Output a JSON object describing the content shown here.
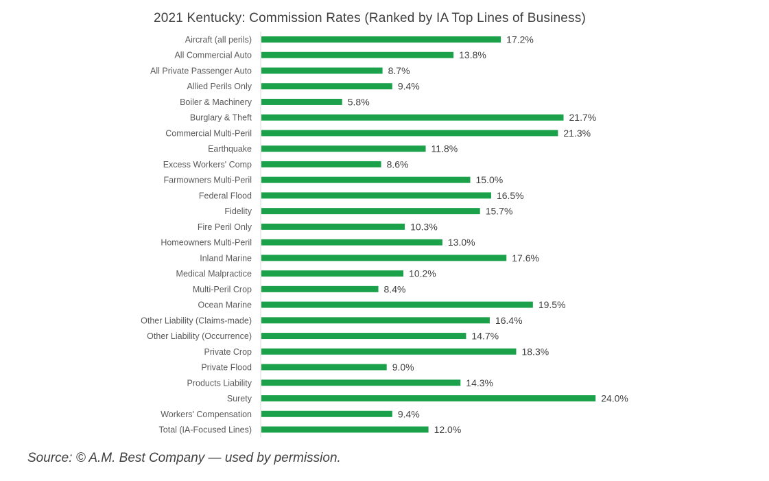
{
  "chart_data": {
    "type": "bar",
    "orientation": "horizontal",
    "title": "2021 Kentucky: Commission Rates (Ranked by IA Top Lines of Business)",
    "xlabel": "",
    "ylabel": "",
    "value_format": "percent_one_decimal",
    "xlim": [
      0,
      24.0
    ],
    "grid": false,
    "legend": "none",
    "bar_color": "#1aa14a",
    "categories": [
      "Aircraft (all perils)",
      "All Commercial Auto",
      "All Private Passenger Auto",
      "Allied Perils Only",
      "Boiler & Machinery",
      "Burglary & Theft",
      "Commercial Multi-Peril",
      "Earthquake",
      "Excess Workers' Comp",
      "Farmowners Multi-Peril",
      "Federal Flood",
      "Fidelity",
      "Fire Peril Only",
      "Homeowners Multi-Peril",
      "Inland Marine",
      "Medical Malpractice",
      "Multi-Peril Crop",
      "Ocean Marine",
      "Other Liability (Claims-made)",
      "Other Liability (Occurrence)",
      "Private Crop",
      "Private Flood",
      "Products Liability",
      "Surety",
      "Workers' Compensation",
      "Total (IA-Focused Lines)"
    ],
    "values": [
      17.2,
      13.8,
      8.7,
      9.4,
      5.8,
      21.7,
      21.3,
      11.8,
      8.6,
      15.0,
      16.5,
      15.7,
      10.3,
      13.0,
      17.6,
      10.2,
      8.4,
      19.5,
      16.4,
      14.7,
      18.3,
      9.0,
      14.3,
      24.0,
      9.4,
      12.0
    ],
    "data_labels": [
      "17.2%",
      "13.8%",
      "8.7%",
      "9.4%",
      "5.8%",
      "21.7%",
      "21.3%",
      "11.8%",
      "8.6%",
      "15.0%",
      "16.5%",
      "15.7%",
      "10.3%",
      "13.0%",
      "17.6%",
      "10.2%",
      "8.4%",
      "19.5%",
      "16.4%",
      "14.7%",
      "18.3%",
      "9.0%",
      "14.3%",
      "24.0%",
      "9.4%",
      "12.0%"
    ]
  },
  "source": "Source: © A.M. Best Company — used by permission."
}
